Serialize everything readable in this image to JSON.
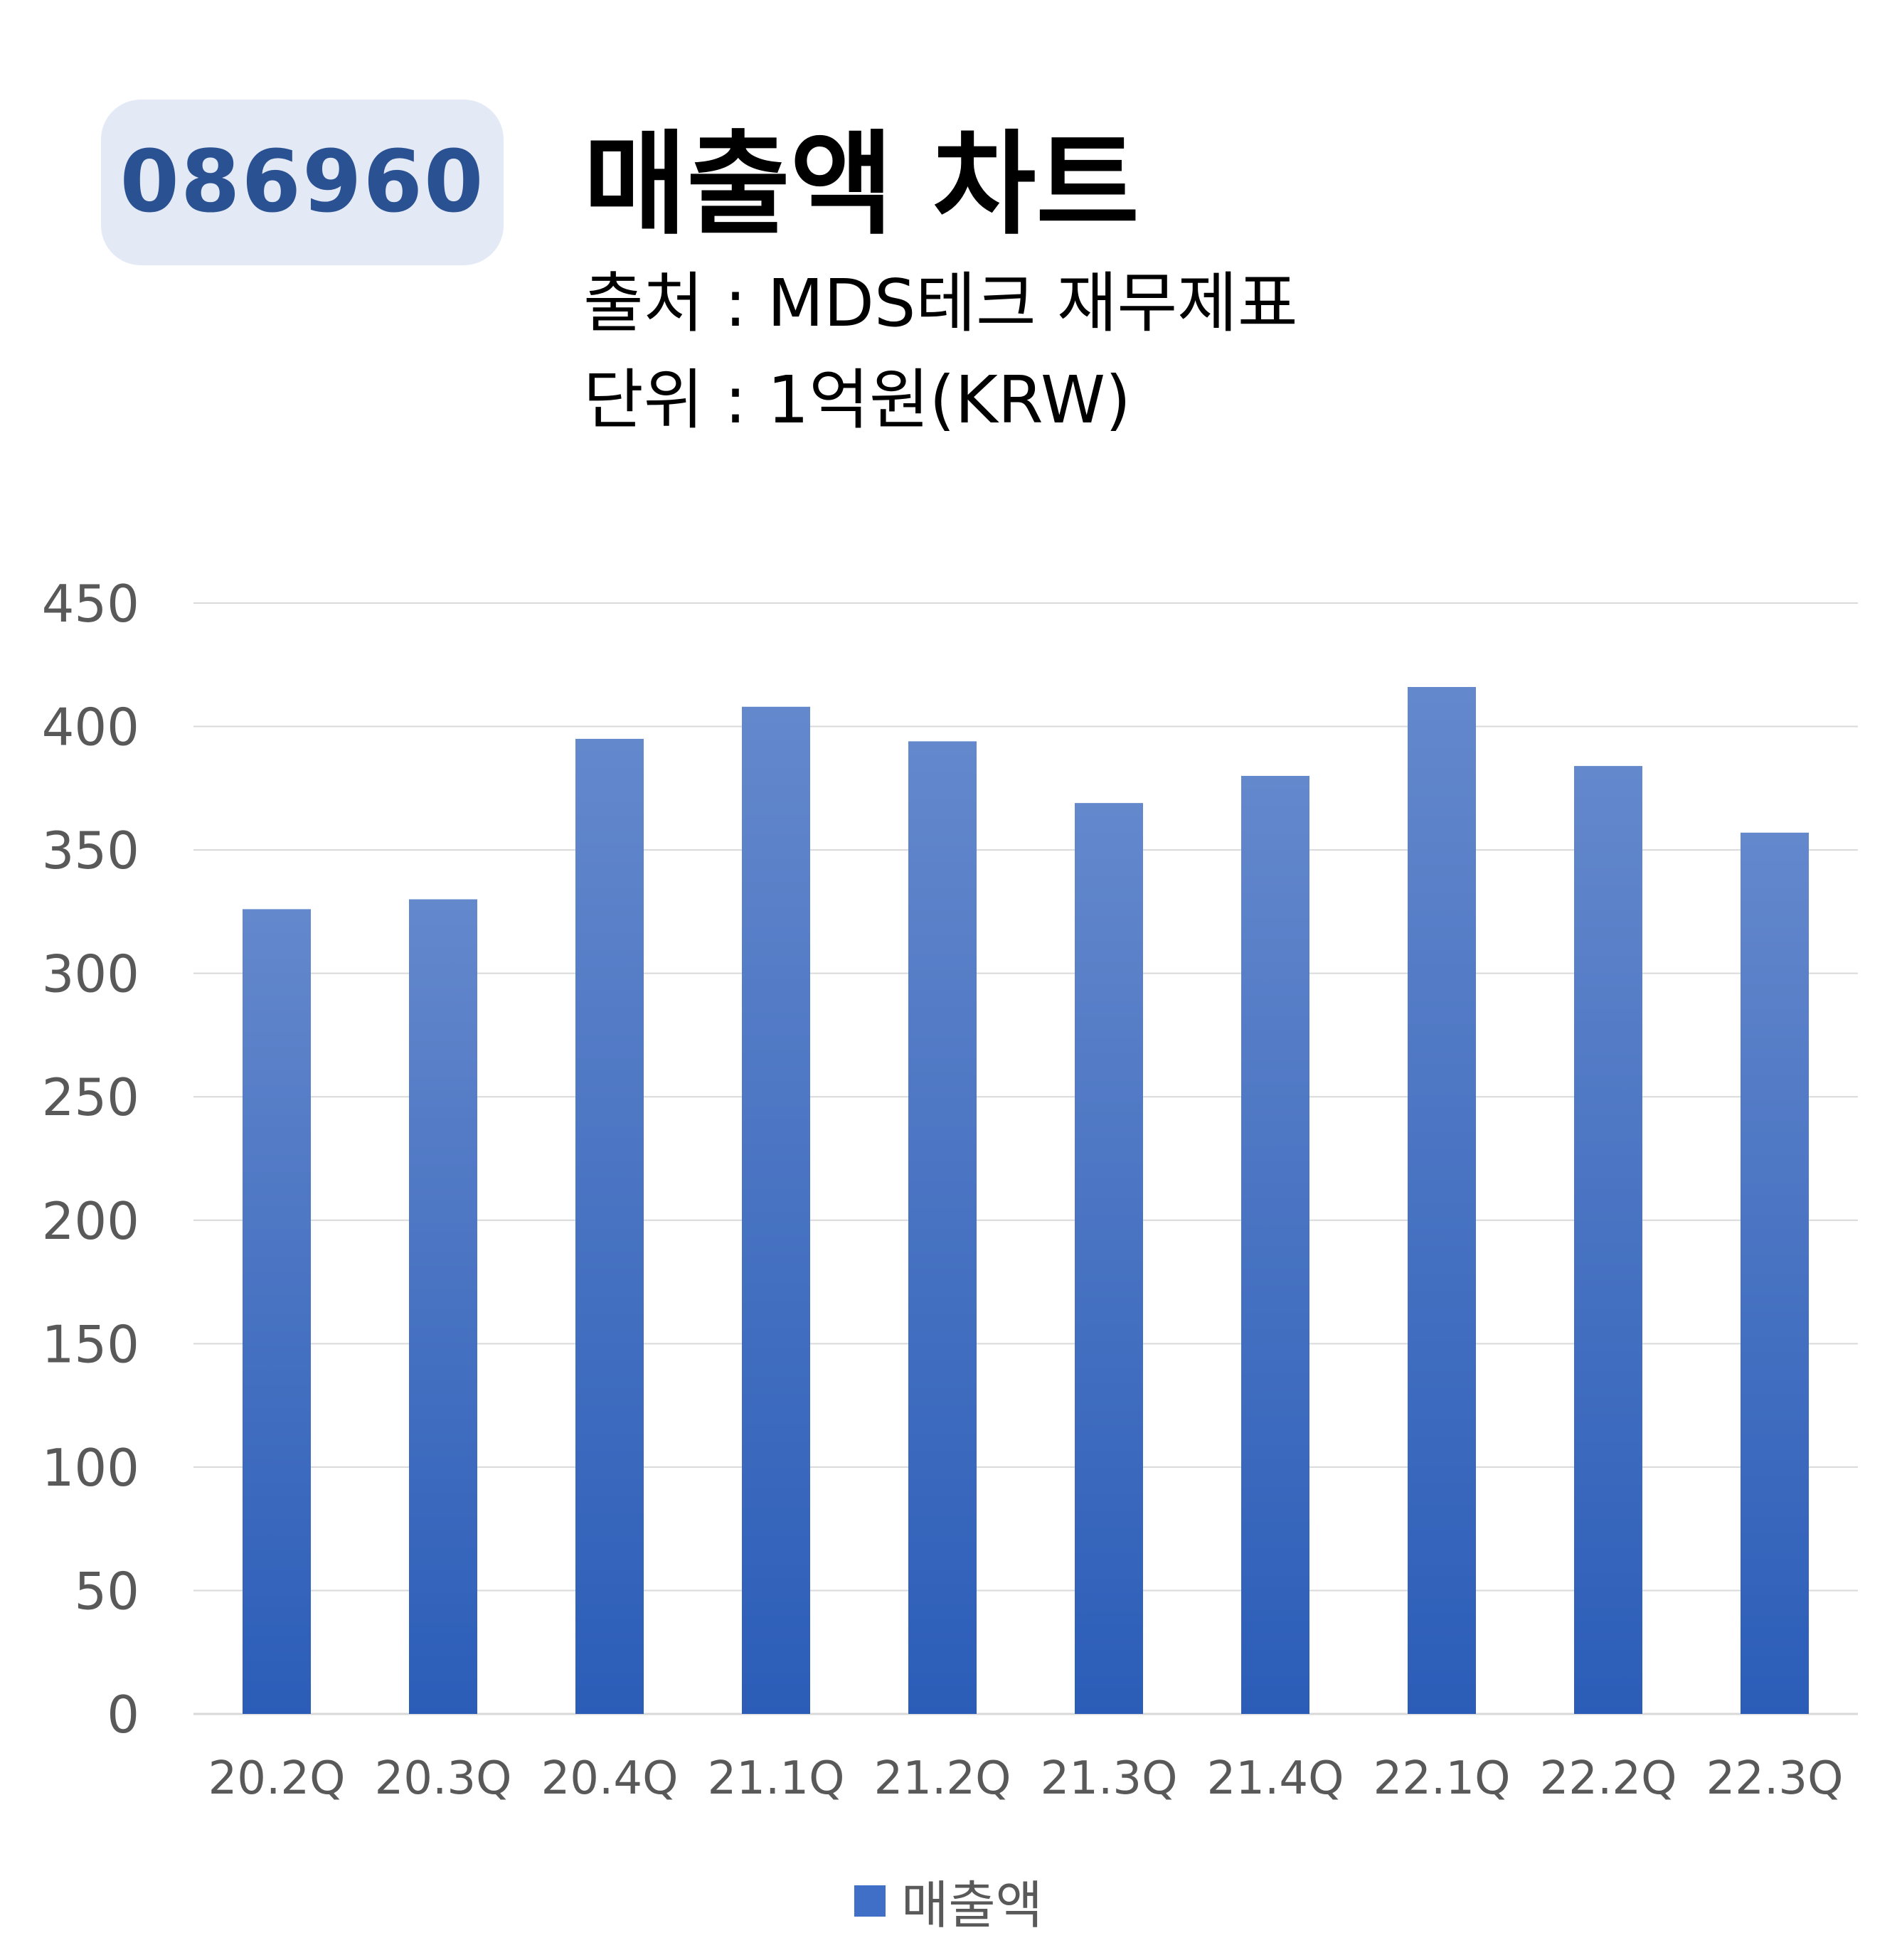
{
  "header": {
    "code": "086960",
    "title": "매출액 차트",
    "source": "출처 : MDS테크 재무제표",
    "unit": "단위 : 1억원(KRW)"
  },
  "chart_data": {
    "type": "bar",
    "categories": [
      "20.2Q",
      "20.3Q",
      "20.4Q",
      "21.1Q",
      "21.2Q",
      "21.3Q",
      "21.4Q",
      "22.1Q",
      "22.2Q",
      "22.3Q"
    ],
    "series": [
      {
        "name": "매출액",
        "values": [
          326,
          330,
          395,
          408,
          394,
          369,
          380,
          416,
          384,
          357
        ]
      }
    ],
    "ylim": [
      0,
      450
    ],
    "yticks": [
      0,
      50,
      100,
      150,
      200,
      250,
      300,
      350,
      400,
      450
    ],
    "grid": true,
    "legend_position": "bottom",
    "colors": {
      "bar_top": "#6488cc",
      "bar_bottom": "#2b5db8",
      "grid": "#d9d9d9",
      "axis_text": "#595959"
    }
  }
}
